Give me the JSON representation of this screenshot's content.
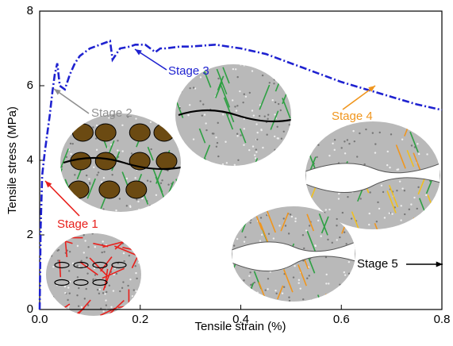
{
  "chart_data": {
    "type": "line",
    "xlabel": "Tensile strain (%)",
    "ylabel": "Tensile stress (MPa)",
    "x": [
      0,
      0.002,
      0.005,
      0.01,
      0.015,
      0.02,
      0.025,
      0.03,
      0.035,
      0.04,
      0.05,
      0.06,
      0.07,
      0.08,
      0.1,
      0.12,
      0.14,
      0.145,
      0.15,
      0.16,
      0.18,
      0.19,
      0.21,
      0.22,
      0.23,
      0.24,
      0.25,
      0.28,
      0.3,
      0.35,
      0.4,
      0.45,
      0.5,
      0.55,
      0.6,
      0.65,
      0.7,
      0.75,
      0.8
    ],
    "values": [
      0,
      2.2,
      3.6,
      4.2,
      4.7,
      5.2,
      5.8,
      6.3,
      6.6,
      6.0,
      5.9,
      6.3,
      6.6,
      6.8,
      7.0,
      7.1,
      7.2,
      6.7,
      6.8,
      7.0,
      7.05,
      7.1,
      7.1,
      7.0,
      6.9,
      7.0,
      7.0,
      7.05,
      7.05,
      7.1,
      7.0,
      6.85,
      6.6,
      6.35,
      6.1,
      5.9,
      5.7,
      5.5,
      5.35
    ],
    "color": "#1f22d0",
    "xlim": [
      0,
      0.8
    ],
    "xticks": [
      {
        "value": 0,
        "label": "0.0"
      },
      0.2,
      0.4,
      0.6,
      0.8
    ],
    "ylim": [
      0,
      8
    ],
    "yticks": [
      0,
      2,
      4,
      6,
      8
    ],
    "annotations": [
      {
        "text": "Stage 1",
        "color": "#e8201c"
      },
      {
        "text": "Stage 2",
        "color": "#909090"
      },
      {
        "text": "Stage 3",
        "color": "#1f22d0"
      },
      {
        "text": "Stage 4",
        "color": "#f0961e"
      },
      {
        "text": "Stage 5",
        "color": "#000000"
      }
    ]
  }
}
